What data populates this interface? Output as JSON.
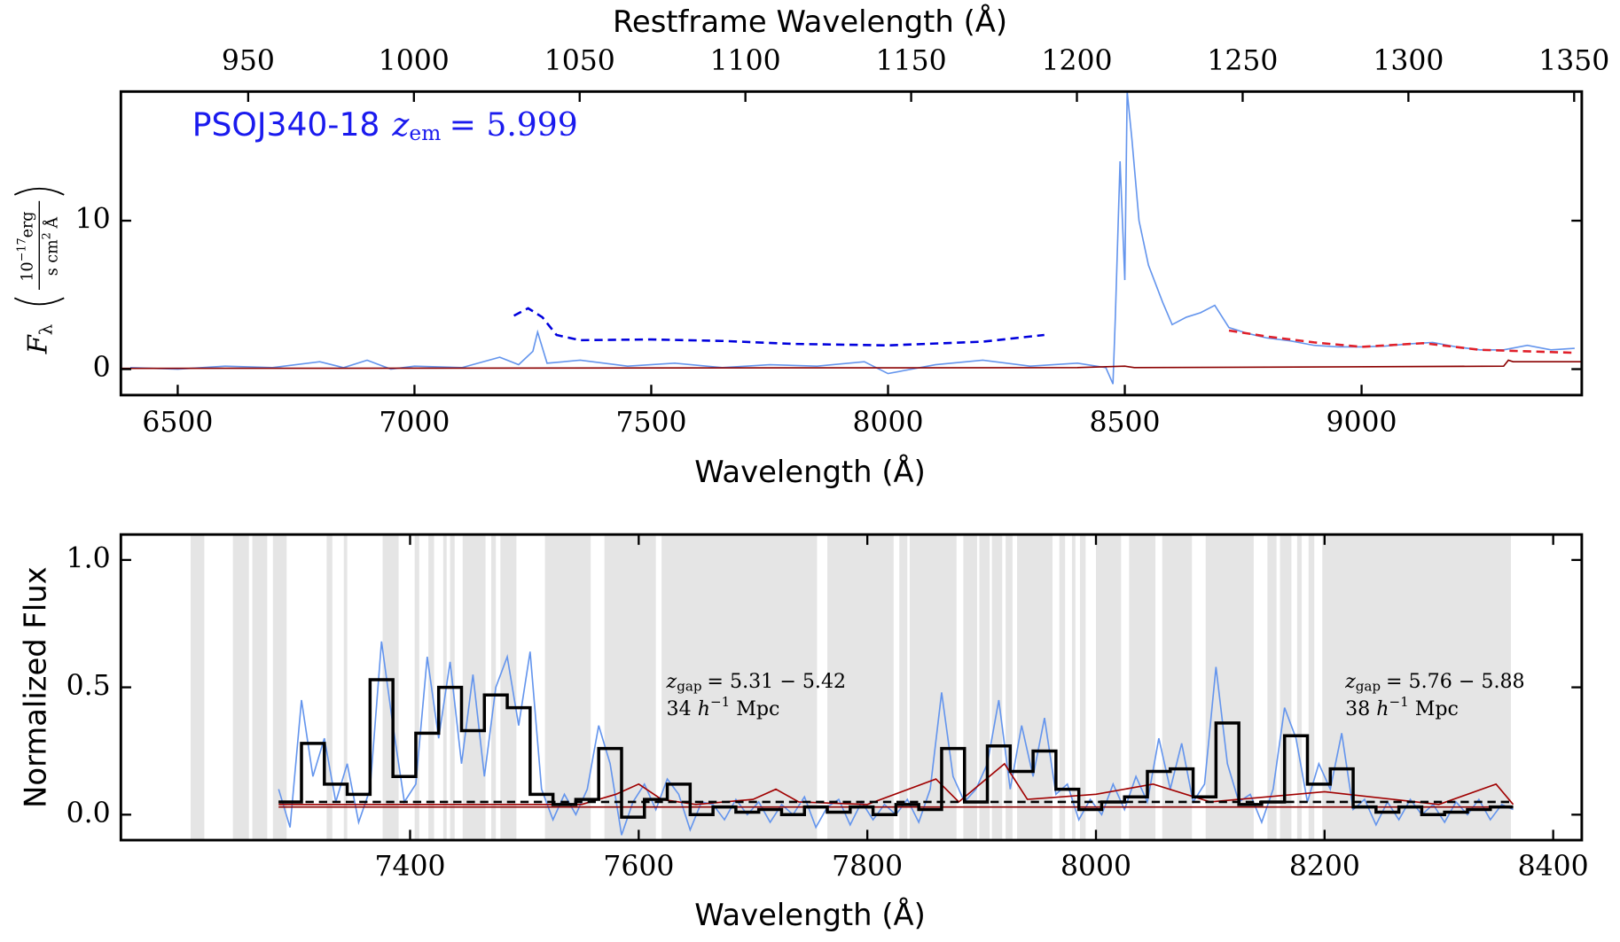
{
  "chart_data": [
    {
      "type": "line",
      "annotation": {
        "name": "PSOJ340-18",
        "z": "z",
        "sub": "em",
        "eq": "= 5.999"
      },
      "xlabel": "Wavelength (Å)",
      "x2label": "Restframe Wavelength (Å)",
      "ylabel": {
        "f": "F",
        "sub": "λ",
        "num": "10",
        "num_sup": "−17",
        "num_unit": "erg",
        "den": "s cm",
        "den_sup": "2",
        "den_unit": "Å"
      },
      "xlim": [
        6380,
        9465
      ],
      "xticks": [
        6500,
        7000,
        7500,
        8000,
        8500,
        9000
      ],
      "x2lim": [
        911.6,
        1352.3
      ],
      "x2ticks": [
        950,
        1000,
        1050,
        1100,
        1150,
        1200,
        1250,
        1300,
        1350
      ],
      "ylim": [
        -1.75,
        18.7
      ],
      "yticks": [
        0,
        10
      ],
      "series": [
        {
          "color": "#6495ed",
          "style": "solid",
          "x": [
            6400,
            6500,
            6600,
            6700,
            6800,
            6850,
            6900,
            6950,
            7000,
            7100,
            7180,
            7220,
            7250,
            7260,
            7280,
            7350,
            7450,
            7550,
            7650,
            7750,
            7850,
            7950,
            8000,
            8100,
            8200,
            8300,
            8400,
            8460,
            8475,
            8480,
            8490,
            8500,
            8505,
            8515,
            8530,
            8550,
            8580,
            8600,
            8630,
            8660,
            8690,
            8720,
            8760,
            8800,
            8850,
            8900,
            8950,
            9000,
            9050,
            9100,
            9150,
            9200,
            9250,
            9300,
            9350,
            9400,
            9450
          ],
          "values": [
            0.1,
            0,
            0.2,
            0.1,
            0.5,
            0.1,
            0.6,
            0,
            0.2,
            0.1,
            0.8,
            0.3,
            1.2,
            2.5,
            0.4,
            0.6,
            0.2,
            0.4,
            0.1,
            0.3,
            0.2,
            0.5,
            -0.3,
            0.3,
            0.6,
            0.2,
            0.4,
            0.1,
            -1,
            3.5,
            14,
            6,
            18.7,
            15.5,
            10,
            7,
            4.5,
            3,
            3.5,
            3.8,
            4.3,
            2.8,
            2.4,
            2.1,
            1.9,
            1.6,
            1.5,
            1.5,
            1.55,
            1.7,
            1.8,
            1.5,
            1.3,
            1.3,
            1.6,
            1.3,
            1.4
          ]
        },
        {
          "color": "#8b0000",
          "style": "solid",
          "x": [
            6380,
            8400,
            8500,
            8520,
            9300,
            9310,
            9320,
            9465
          ],
          "values": [
            0.05,
            0.1,
            0.2,
            0.1,
            0.2,
            0.6,
            0.5,
            0.5
          ]
        },
        {
          "color": "#0000dd",
          "style": "dashed",
          "x": [
            7210,
            7240,
            7270,
            7300,
            7350,
            7500,
            7650,
            7800,
            8000,
            8200,
            8330
          ],
          "values": [
            3.6,
            4.1,
            3.5,
            2.3,
            1.95,
            2.0,
            1.9,
            1.7,
            1.6,
            1.85,
            2.3
          ]
        },
        {
          "color": "#e0202a",
          "style": "dashed",
          "x": [
            8720,
            8800,
            8900,
            9000,
            9130,
            9250,
            9450
          ],
          "values": [
            2.6,
            2.2,
            1.8,
            1.5,
            1.75,
            1.3,
            1.1
          ]
        }
      ]
    },
    {
      "type": "line",
      "xlabel": "Wavelength (Å)",
      "ylabel": "Normalized Flux",
      "xlim": [
        7147,
        8425
      ],
      "xticks": [
        7400,
        7600,
        7800,
        8000,
        8200,
        8400
      ],
      "ylim": [
        -0.1,
        1.1
      ],
      "yticks": [
        {
          "value": 0,
          "label": "0.0"
        },
        {
          "value": 0.5,
          "label": "0.5"
        },
        {
          "value": 1,
          "label": "1.0"
        }
      ],
      "band_color": "#e5e5e5",
      "bands": [
        [
          7208,
          7220
        ],
        [
          7245,
          7259
        ],
        [
          7262,
          7275
        ],
        [
          7280,
          7292
        ],
        [
          7327,
          7332
        ],
        [
          7342,
          7345
        ],
        [
          7376,
          7390
        ],
        [
          7404,
          7408
        ],
        [
          7416,
          7421
        ],
        [
          7429,
          7432
        ],
        [
          7435,
          7439
        ],
        [
          7446,
          7466
        ],
        [
          7471,
          7475
        ],
        [
          7479,
          7493
        ],
        [
          7518,
          7558
        ],
        [
          7570,
          7615
        ],
        [
          7620,
          7756
        ],
        [
          7765,
          7823
        ],
        [
          7828,
          7835
        ],
        [
          7837,
          7878
        ],
        [
          7884,
          7896
        ],
        [
          7898,
          7907
        ],
        [
          7909,
          7918
        ],
        [
          7921,
          7927
        ],
        [
          7931,
          7962
        ],
        [
          7968,
          7973
        ],
        [
          7979,
          7982
        ],
        [
          7986,
          7991
        ],
        [
          8000,
          8022
        ],
        [
          8029,
          8052
        ],
        [
          8058,
          8084
        ],
        [
          8096,
          8138
        ],
        [
          8150,
          8158
        ],
        [
          8161,
          8171
        ],
        [
          8176,
          8180
        ],
        [
          8186,
          8191
        ],
        [
          8198,
          8363
        ]
      ],
      "series": [
        {
          "color": "#6495ed",
          "style": "solid",
          "x": [
            7285,
            7295,
            7305,
            7315,
            7325,
            7335,
            7345,
            7355,
            7365,
            7375,
            7385,
            7395,
            7405,
            7415,
            7425,
            7435,
            7445,
            7455,
            7465,
            7475,
            7485,
            7495,
            7505,
            7515,
            7525,
            7535,
            7545,
            7555,
            7565,
            7575,
            7585,
            7595,
            7605,
            7615,
            7625,
            7635,
            7645,
            7655,
            7665,
            7675,
            7685,
            7695,
            7705,
            7715,
            7725,
            7735,
            7745,
            7755,
            7765,
            7775,
            7785,
            7795,
            7805,
            7815,
            7825,
            7835,
            7845,
            7855,
            7865,
            7875,
            7885,
            7895,
            7905,
            7915,
            7925,
            7935,
            7945,
            7955,
            7965,
            7975,
            7985,
            7995,
            8005,
            8015,
            8025,
            8035,
            8045,
            8055,
            8065,
            8075,
            8085,
            8095,
            8105,
            8115,
            8125,
            8135,
            8145,
            8155,
            8165,
            8175,
            8185,
            8195,
            8205,
            8215,
            8225,
            8235,
            8245,
            8255,
            8265,
            8275,
            8285,
            8295,
            8305,
            8315,
            8325,
            8335,
            8345,
            8355,
            8365
          ],
          "values": [
            0.1,
            -0.05,
            0.45,
            0.15,
            0.3,
            0.05,
            0.2,
            -0.03,
            0.1,
            0.68,
            0.35,
            0.05,
            0.12,
            0.62,
            0.3,
            0.6,
            0.2,
            0.55,
            0.15,
            0.5,
            0.62,
            0.35,
            0.64,
            0.1,
            -0.02,
            0.08,
            0,
            0.1,
            0.35,
            0.2,
            -0.08,
            0.05,
            0.12,
            0.02,
            0.14,
            0.08,
            -0.06,
            0.05,
            0.04,
            -0.02,
            0.06,
            0,
            0.05,
            -0.03,
            0.04,
            0,
            0.07,
            -0.05,
            0.03,
            0.06,
            -0.04,
            0.05,
            -0.02,
            0.04,
            0,
            0.06,
            -0.03,
            0.1,
            0.48,
            0.15,
            0.05,
            0.1,
            0.2,
            0.45,
            0.1,
            0.35,
            0.15,
            0.38,
            0.08,
            0.12,
            -0.02,
            0.06,
            0,
            0.12,
            0.02,
            0.15,
            0.05,
            0.3,
            0.1,
            0.28,
            0.05,
            0.12,
            0.58,
            0.2,
            0.05,
            0.08,
            -0.03,
            0.1,
            0.42,
            0.3,
            0.05,
            0.2,
            0.1,
            0.32,
            0.02,
            0.06,
            -0.04,
            0.05,
            -0.02,
            0.06,
            0,
            0.04,
            -0.03,
            0.05,
            0,
            0.06,
            -0.02,
            0.04,
            0.02
          ]
        },
        {
          "color": "#a00000",
          "style": "solid",
          "x": [
            7285,
            7550,
            7580,
            7600,
            7620,
            7650,
            7700,
            7720,
            7740,
            7800,
            7860,
            7880,
            7920,
            7940,
            8000,
            8050,
            8100,
            8200,
            8300,
            8350,
            8365
          ],
          "values": [
            0.04,
            0.04,
            0.08,
            0.12,
            0.06,
            0.04,
            0.06,
            0.1,
            0.05,
            0.04,
            0.14,
            0.05,
            0.2,
            0.06,
            0.08,
            0.12,
            0.05,
            0.09,
            0.04,
            0.12,
            0.04
          ]
        },
        {
          "color": "#8b0000",
          "style": "solid",
          "x": [
            7285,
            8365
          ],
          "values": [
            0.03,
            0.03
          ]
        },
        {
          "color": "#000000",
          "style": "dashed",
          "x": [
            7285,
            8365
          ],
          "values": [
            0.05,
            0.05
          ]
        }
      ],
      "binned": {
        "color": "#000000",
        "bins": [
          7285,
          7305,
          7325,
          7345,
          7365,
          7385,
          7405,
          7425,
          7445,
          7465,
          7485,
          7505,
          7525,
          7545,
          7565,
          7585,
          7605,
          7625,
          7645,
          7665,
          7685,
          7705,
          7725,
          7745,
          7765,
          7785,
          7805,
          7825,
          7845,
          7865,
          7885,
          7905,
          7925,
          7945,
          7965,
          7985,
          8005,
          8025,
          8045,
          8065,
          8085,
          8105,
          8125,
          8145,
          8165,
          8185,
          8205,
          8225,
          8245,
          8265,
          8285,
          8305,
          8325,
          8345,
          8365
        ],
        "values": [
          0.05,
          0.28,
          0.12,
          0.08,
          0.53,
          0.15,
          0.32,
          0.5,
          0.33,
          0.47,
          0.42,
          0.08,
          0.04,
          0.06,
          0.26,
          -0.01,
          0.06,
          0.12,
          0,
          0.03,
          0.01,
          0.02,
          0,
          0.03,
          0.01,
          0.03,
          0,
          0.04,
          0.02,
          0.26,
          0.05,
          0.27,
          0.17,
          0.25,
          0.1,
          0.02,
          0.05,
          0.07,
          0.17,
          0.18,
          0.07,
          0.36,
          0.04,
          0.05,
          0.31,
          0.12,
          0.18,
          0.03,
          0.01,
          0.03,
          0,
          0.01,
          0.02,
          0.03
        ]
      },
      "annotations": [
        {
          "z": "z",
          "sub": "gap",
          "range": "= 5.31 − 5.42",
          "dist": "34",
          "h": "h",
          "sup": "−1",
          "unit": "Mpc"
        },
        {
          "z": "z",
          "sub": "gap",
          "range": "= 5.76 − 5.88",
          "dist": "38",
          "h": "h",
          "sup": "−1",
          "unit": "Mpc"
        }
      ]
    }
  ]
}
